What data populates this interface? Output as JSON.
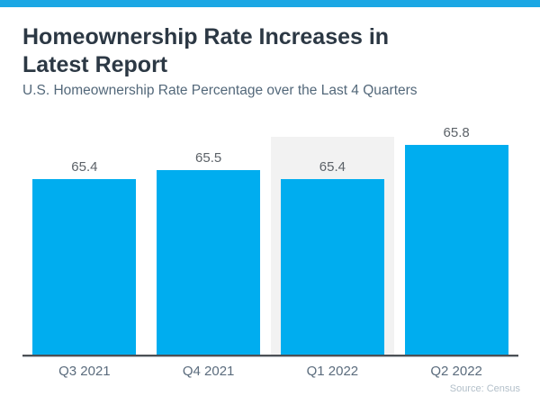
{
  "page": {
    "background_color": "#FFFFFF",
    "top_strip_color": "#1BA7E4"
  },
  "header": {
    "title": "Homeownership Rate Increases in Latest Report",
    "title_line1": "Homeownership Rate Increases in",
    "title_line2": "Latest Report",
    "subtitle": "U.S. Homeownership Rate Percentage over the Last 4 Quarters",
    "title_color": "#2C3844",
    "subtitle_color": "#53687A"
  },
  "chart_data": {
    "type": "bar",
    "title": "Homeownership Rate Increases in Latest Report",
    "subtitle": "U.S. Homeownership Rate Percentage over the Last 4 Quarters",
    "categories": [
      "Q3 2021",
      "Q4 2021",
      "Q1 2022",
      "Q2 2022"
    ],
    "values": [
      65.4,
      65.5,
      65.4,
      65.8
    ],
    "value_labels": [
      "65.4",
      "65.5",
      "65.4",
      "65.8"
    ],
    "xlabel": "",
    "ylabel": "",
    "ylim": [
      63.3,
      65.9
    ],
    "grid": false,
    "legend": false,
    "bar_color": "#00ADEF",
    "value_label_color": "#5C6268",
    "category_label_color": "#5B6C7D",
    "axis_line_color": "#4C5055",
    "highlighted_category_index": 2,
    "highlight_band_color": "#F2F2F2"
  },
  "footer": {
    "source": "Source: Census",
    "source_color": "#B2BFC9"
  }
}
